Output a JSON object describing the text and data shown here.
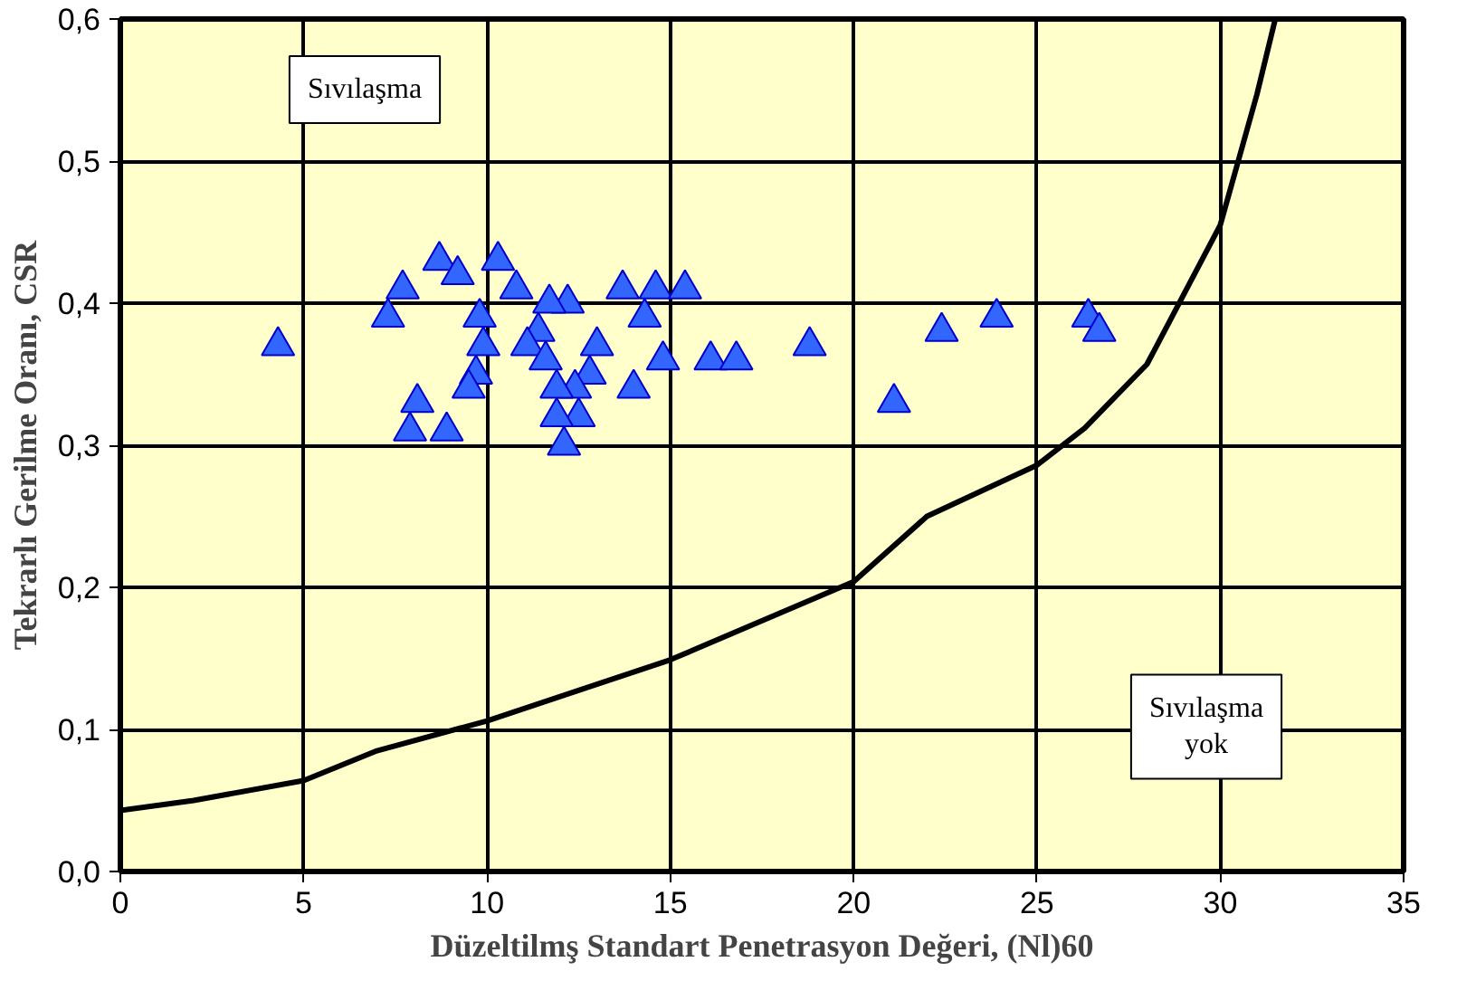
{
  "chart_data": {
    "type": "scatter",
    "xlabel": "Düzeltilmş Standart Penetrasyon Değeri, (Nl)60",
    "ylabel": "Tekrarlı Gerilme Oranı, CSR",
    "xlim": [
      0,
      35
    ],
    "xticks": [
      0,
      5,
      10,
      15,
      20,
      25,
      30,
      35
    ],
    "ylim": [
      0,
      0.6
    ],
    "yticks": [
      {
        "value": 0,
        "label": "0,0"
      },
      {
        "value": 0.1,
        "label": "0,1"
      },
      {
        "value": 0.2,
        "label": "0,2"
      },
      {
        "value": 0.3,
        "label": "0,3"
      },
      {
        "value": 0.4,
        "label": "0,4"
      },
      {
        "value": 0.5,
        "label": "0,5"
      },
      {
        "value": 0.6,
        "label": "0,6"
      }
    ],
    "grid": true,
    "marker": "triangle",
    "series": [
      {
        "color": "#3366ff",
        "x": [
          4.3,
          8.7,
          7.7,
          7.3,
          9.2,
          10.3,
          10.8,
          9.8,
          9.9,
          9.7,
          9.5,
          8.1,
          7.9,
          8.9,
          12.2,
          11.7,
          11.4,
          11.1,
          11.6,
          13.7,
          14.6,
          15.4,
          14.3,
          13.0,
          14.8,
          12.8,
          12.4,
          11.9,
          12.5,
          11.9,
          12.1,
          14.0,
          16.1,
          16.8,
          18.8,
          21.1,
          22.4,
          23.9,
          26.4,
          26.7
        ],
        "values": [
          0.37,
          0.43,
          0.41,
          0.39,
          0.42,
          0.43,
          0.41,
          0.39,
          0.37,
          0.35,
          0.34,
          0.33,
          0.31,
          0.31,
          0.4,
          0.4,
          0.38,
          0.37,
          0.36,
          0.41,
          0.41,
          0.41,
          0.39,
          0.37,
          0.36,
          0.35,
          0.34,
          0.34,
          0.32,
          0.32,
          0.3,
          0.34,
          0.36,
          0.36,
          0.37,
          0.33,
          0.38,
          0.39,
          0.39,
          0.38
        ]
      },
      {
        "type": "line",
        "color": "#000000",
        "marker": "none",
        "x": [
          0,
          2,
          5,
          7,
          10,
          15,
          20,
          22,
          25,
          26.3,
          28,
          30,
          31,
          31.5
        ],
        "values": [
          0.043,
          0.05,
          0.064,
          0.085,
          0.106,
          0.149,
          0.204,
          0.25,
          0.286,
          0.312,
          0.357,
          0.455,
          0.547,
          0.6
        ]
      }
    ],
    "annotations": [
      "Sıvılaşma",
      "Sıvılaşma\nyok"
    ]
  }
}
